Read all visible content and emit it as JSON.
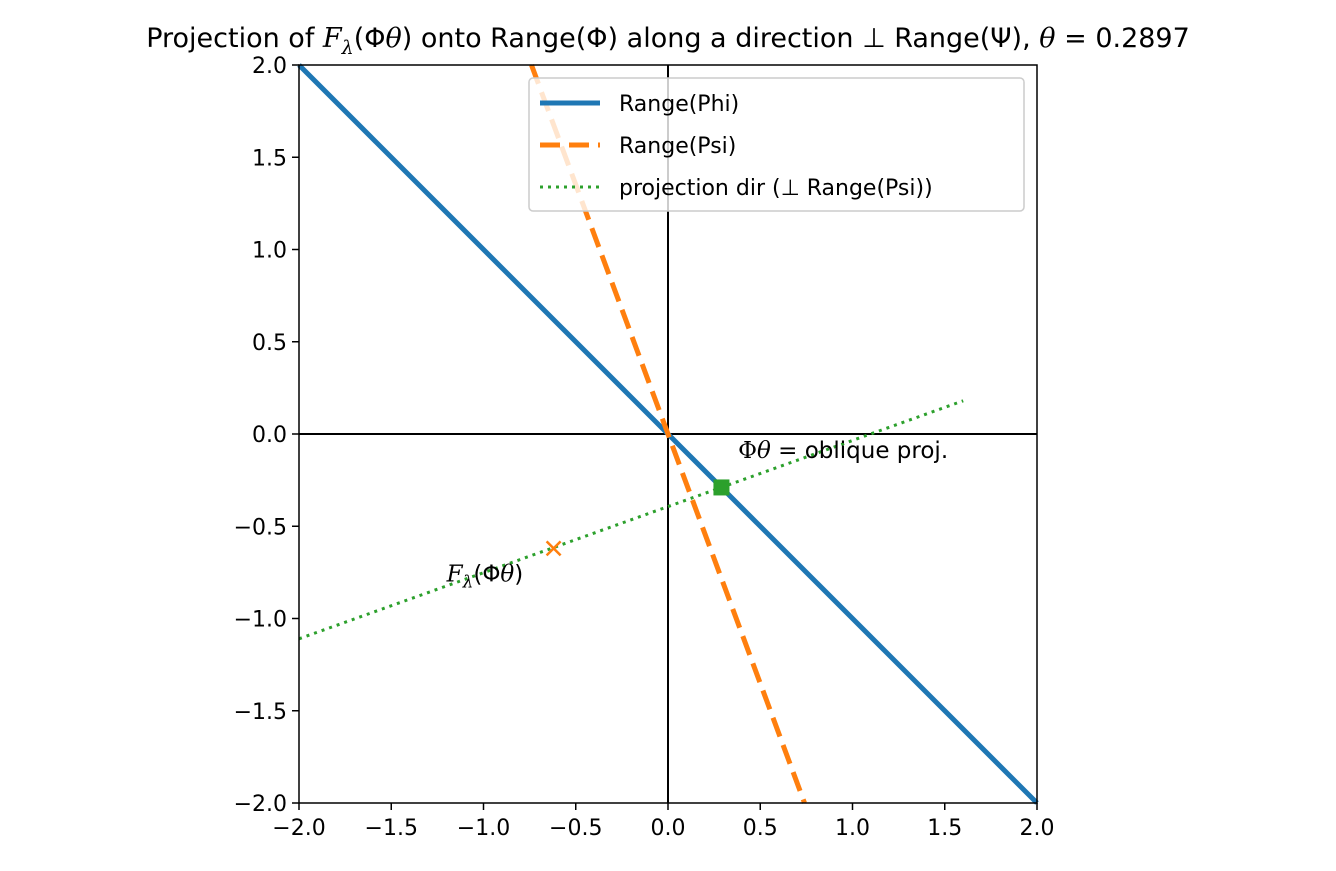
{
  "chart_data": {
    "type": "line",
    "title": {
      "prefix": "Projection of ",
      "F": "F",
      "lambda": "λ",
      "arg": "(Φ",
      "theta_in_arg": "θ",
      "middle": ") onto Range(Φ) along a direction ⊥ Range(Ψ),  ",
      "theta": "θ",
      "equals_value": " = 0.2897"
    },
    "theta": 0.2897,
    "xlabel": "",
    "ylabel": "",
    "xlim": [
      -2.0,
      2.0
    ],
    "ylim": [
      -2.0,
      2.0
    ],
    "grid": false,
    "xticks": [
      -2.0,
      -1.5,
      -1.0,
      -0.5,
      0.0,
      0.5,
      1.0,
      1.5,
      2.0
    ],
    "xtick_labels": [
      "−2.0",
      "−1.5",
      "−1.0",
      "−0.5",
      "0.0",
      "0.5",
      "1.0",
      "1.5",
      "2.0"
    ],
    "yticks": [
      2.0,
      1.5,
      1.0,
      0.5,
      0.0,
      -0.5,
      -1.0,
      -1.5,
      -2.0
    ],
    "ytick_labels": [
      "2.0",
      "1.5",
      "1.0",
      "0.5",
      "0.0",
      "−0.5",
      "−1.0",
      "−1.5",
      "−2.0"
    ],
    "reference_lines": [
      {
        "name": "x-axis-zero-line",
        "orientation": "horizontal",
        "value": 0.0,
        "color": "#000000"
      },
      {
        "name": "y-axis-zero-line",
        "orientation": "vertical",
        "value": 0.0,
        "color": "#000000"
      }
    ],
    "series": [
      {
        "name": "Range(Phi)",
        "style": "solid",
        "color": "#1f77b4",
        "x": [
          -2.0,
          2.0
        ],
        "y": [
          2.0,
          -2.0
        ]
      },
      {
        "name": "Range(Psi)",
        "style": "dashed",
        "color": "#ff7f0e",
        "x": [
          -0.74,
          0.74
        ],
        "y": [
          2.0,
          -2.0
        ]
      },
      {
        "name": "projection dir (⊥ Range(Psi))",
        "style": "dotted",
        "color": "#2ca02c",
        "x": [
          -2.0,
          1.6
        ],
        "y": [
          -1.11,
          0.18
        ]
      }
    ],
    "points": [
      {
        "name": "F_lambda-point",
        "marker": "x",
        "color": "#ff7f0e",
        "x": -0.62,
        "y": -0.62
      },
      {
        "name": "oblique-projection-point",
        "marker": "square",
        "color": "#2ca02c",
        "x": 0.2897,
        "y": -0.2897
      }
    ],
    "annotations": [
      {
        "name": "oblique-projection-label",
        "x": 0.38,
        "y": -0.13,
        "phi": "Φ",
        "theta": "θ",
        "rest": " = oblique proj."
      },
      {
        "name": "F-lambda-label",
        "x": -1.2,
        "y": -0.8,
        "F": "F",
        "lambda": "λ",
        "open": "(Φ",
        "theta": "θ",
        "close": ")"
      }
    ],
    "legend": {
      "placement": "top-center-right",
      "entries": [
        {
          "label": "Range(Phi)",
          "color": "#1f77b4",
          "style": "solid"
        },
        {
          "label": "Range(Psi)",
          "color": "#ff7f0e",
          "style": "dashed"
        },
        {
          "label": "projection dir (⊥ Range(Psi))",
          "color": "#2ca02c",
          "style": "dotted"
        }
      ]
    }
  }
}
